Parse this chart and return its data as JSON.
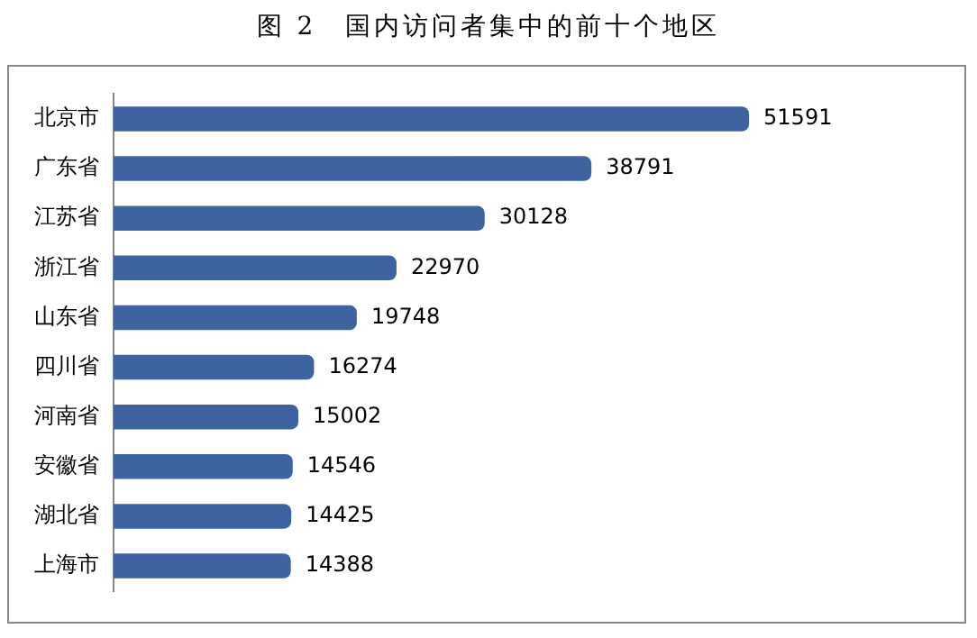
{
  "chart_data": {
    "type": "bar",
    "orientation": "horizontal",
    "title": "图 2　国内访问者集中的前十个地区",
    "categories": [
      "北京市",
      "广东省",
      "江苏省",
      "浙江省",
      "山东省",
      "四川省",
      "河南省",
      "安徽省",
      "湖北省",
      "上海市"
    ],
    "values": [
      51591,
      38791,
      30128,
      22970,
      19748,
      16274,
      15002,
      14546,
      14425,
      14388
    ],
    "color": "#3d64a0",
    "data_labels": true,
    "grid": false,
    "legend": false,
    "tick_labels": "y"
  }
}
